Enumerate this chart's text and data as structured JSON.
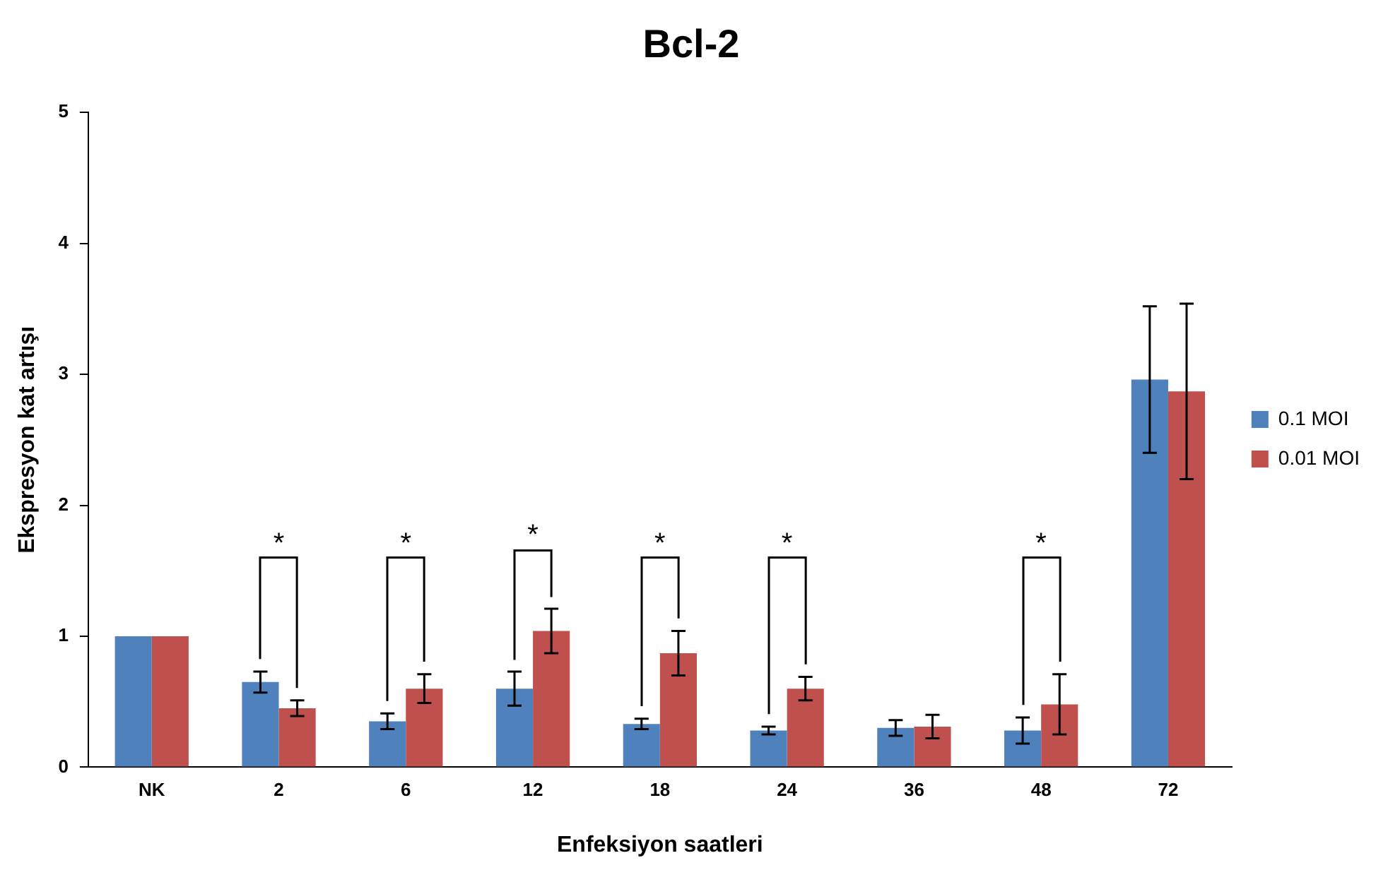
{
  "chart_data": {
    "type": "bar",
    "title": "Bcl-2",
    "xlabel": "Enfeksiyon saatleri",
    "ylabel": "Ekspresyon kat artışı",
    "categories": [
      "NK",
      "2",
      "6",
      "12",
      "18",
      "24",
      "36",
      "48",
      "72"
    ],
    "series": [
      {
        "name": "0.1 MOI",
        "color": "#4f81bd",
        "values": [
          1,
          0.65,
          0.35,
          0.6,
          0.33,
          0.28,
          0.3,
          0.28,
          2.96
        ],
        "errors": [
          null,
          0.08,
          0.06,
          0.13,
          0.04,
          0.03,
          0.06,
          0.1,
          0.56
        ]
      },
      {
        "name": "0.01 MOI",
        "color": "#c0504d",
        "values": [
          1,
          0.45,
          0.6,
          1.04,
          0.87,
          0.6,
          0.31,
          0.48,
          2.87
        ],
        "errors": [
          null,
          0.06,
          0.11,
          0.17,
          0.17,
          0.09,
          0.09,
          0.23,
          0.67
        ]
      }
    ],
    "ylim": [
      0,
      5
    ],
    "yticks": [
      0,
      1,
      2,
      3,
      4,
      5
    ],
    "grid": false,
    "legend": "right",
    "annotations": [
      "*",
      "*",
      "*",
      "*",
      "*",
      "*"
    ]
  }
}
